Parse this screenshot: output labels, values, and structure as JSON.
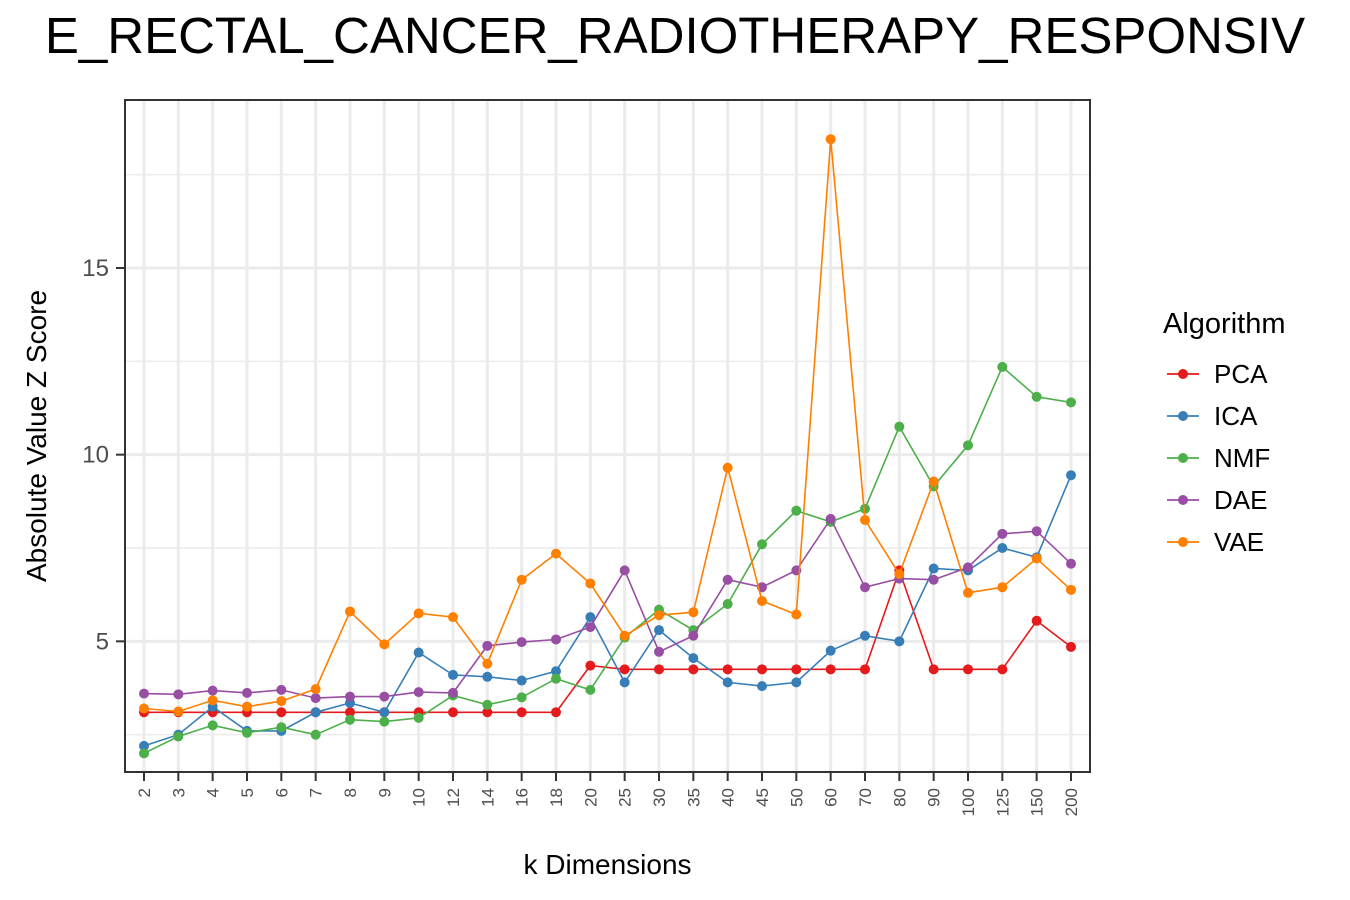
{
  "chart_data": {
    "type": "line",
    "title": "E_RECTAL_CANCER_RADIOTHERAPY_RESPONSIV",
    "xlabel": "k Dimensions",
    "ylabel": "Absolute Value Z Score",
    "categories": [
      "2",
      "3",
      "4",
      "5",
      "6",
      "7",
      "8",
      "9",
      "10",
      "12",
      "14",
      "16",
      "18",
      "20",
      "25",
      "30",
      "35",
      "40",
      "45",
      "50",
      "60",
      "70",
      "80",
      "90",
      "100",
      "125",
      "150",
      "200"
    ],
    "ylim": [
      1.5,
      19.5
    ],
    "yticks": [
      5,
      10,
      15
    ],
    "grid": true,
    "legend": {
      "title": "Algorithm",
      "position": "right"
    },
    "series": [
      {
        "name": "PCA",
        "color": "#E41A1C",
        "values": [
          3.1,
          3.1,
          3.1,
          3.1,
          3.1,
          3.1,
          3.1,
          3.1,
          3.1,
          3.1,
          3.1,
          3.1,
          3.1,
          4.35,
          4.25,
          4.25,
          4.25,
          4.25,
          4.25,
          4.25,
          4.25,
          4.25,
          6.9,
          4.25,
          4.25,
          4.25,
          5.55,
          4.85
        ]
      },
      {
        "name": "ICA",
        "color": "#377EB8",
        "values": [
          2.2,
          2.5,
          3.25,
          2.6,
          2.6,
          3.1,
          3.35,
          3.1,
          4.7,
          4.1,
          4.05,
          3.95,
          4.2,
          5.65,
          3.9,
          5.3,
          4.55,
          3.9,
          3.8,
          3.9,
          4.75,
          5.15,
          5.0,
          6.95,
          6.9,
          7.5,
          7.25,
          9.45
        ]
      },
      {
        "name": "NMF",
        "color": "#4DAF4A",
        "values": [
          2.0,
          2.45,
          2.75,
          2.55,
          2.7,
          2.5,
          2.9,
          2.85,
          2.95,
          3.55,
          3.3,
          3.5,
          4.0,
          3.7,
          5.1,
          5.85,
          5.3,
          6.0,
          7.6,
          8.5,
          8.2,
          8.55,
          10.75,
          9.15,
          10.25,
          12.35,
          11.55,
          11.4
        ]
      },
      {
        "name": "DAE",
        "color": "#984EA3",
        "values": [
          3.6,
          3.58,
          3.68,
          3.62,
          3.7,
          3.48,
          3.52,
          3.52,
          3.64,
          3.62,
          4.88,
          4.98,
          5.05,
          5.38,
          6.9,
          4.72,
          5.15,
          6.65,
          6.45,
          6.9,
          8.28,
          6.45,
          6.68,
          6.65,
          6.98,
          7.88,
          7.95,
          7.08
        ]
      },
      {
        "name": "VAE",
        "color": "#FF7F00",
        "values": [
          3.2,
          3.12,
          3.42,
          3.25,
          3.4,
          3.72,
          5.8,
          4.92,
          5.75,
          5.65,
          4.4,
          6.65,
          7.35,
          6.55,
          5.15,
          5.7,
          5.78,
          9.65,
          6.08,
          5.72,
          18.45,
          8.25,
          6.8,
          9.28,
          6.3,
          6.45,
          7.22,
          6.38
        ]
      }
    ]
  }
}
